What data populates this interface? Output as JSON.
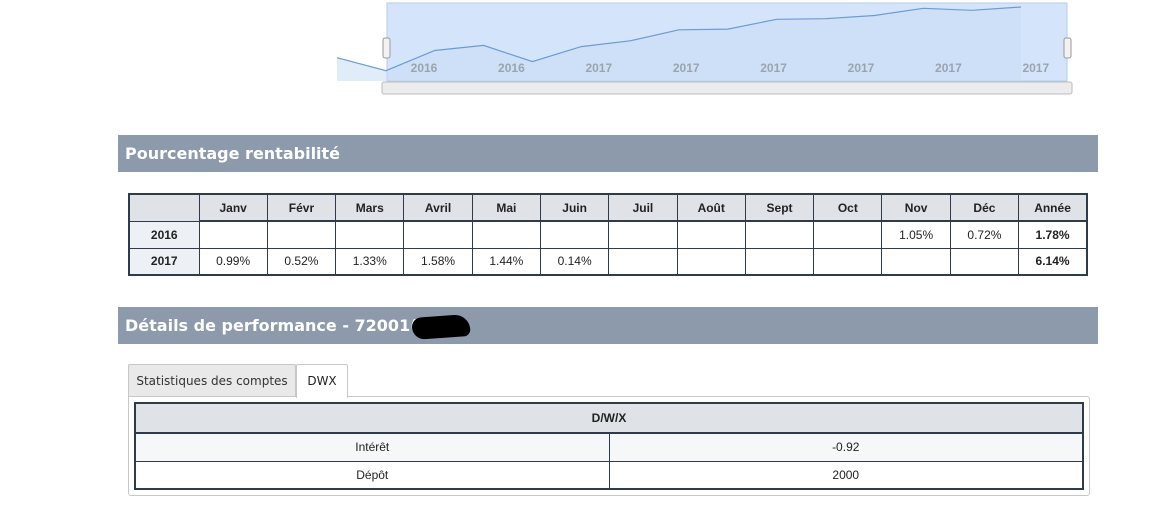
{
  "navigator": {
    "tick_labels": [
      "2016",
      "2016",
      "2017",
      "2017",
      "2017",
      "2017",
      "2017",
      "2017"
    ],
    "series_shape": [
      0.22,
      0.02,
      0.33,
      0.41,
      0.16,
      0.39,
      0.48,
      0.65,
      0.66,
      0.81,
      0.82,
      0.87,
      0.98,
      0.95,
      1.0
    ],
    "colors": {
      "line": "#6b9bd2",
      "fill": "#dce9fa",
      "selection": "#d4e5fb",
      "handle": "#f2f2f2"
    }
  },
  "rentabilite": {
    "title": "Pourcentage rentabilité",
    "columns": [
      "",
      "Janv",
      "Févr",
      "Mars",
      "Avril",
      "Mai",
      "Juin",
      "Juil",
      "Août",
      "Sept",
      "Oct",
      "Nov",
      "Déc",
      "Année"
    ],
    "rows": [
      {
        "year": "2016",
        "cells": [
          "",
          "",
          "",
          "",
          "",
          "",
          "",
          "",
          "",
          "",
          "1.05%",
          "0.72%",
          "1.78%"
        ]
      },
      {
        "year": "2017",
        "cells": [
          "0.99%",
          "0.52%",
          "1.33%",
          "1.58%",
          "1.44%",
          "0.14%",
          "",
          "",
          "",
          "",
          "",
          "",
          "6.14%"
        ]
      }
    ]
  },
  "performance": {
    "title": "Détails de performance - 72001(",
    "tabs": [
      {
        "label": "Statistiques des comptes",
        "active": false
      },
      {
        "label": "DWX",
        "active": true
      }
    ],
    "dwx_table": {
      "header": "D/W/X",
      "rows": [
        {
          "label": "Intérêt",
          "value": "-0.92"
        },
        {
          "label": "Dépôt",
          "value": "2000"
        }
      ]
    }
  }
}
